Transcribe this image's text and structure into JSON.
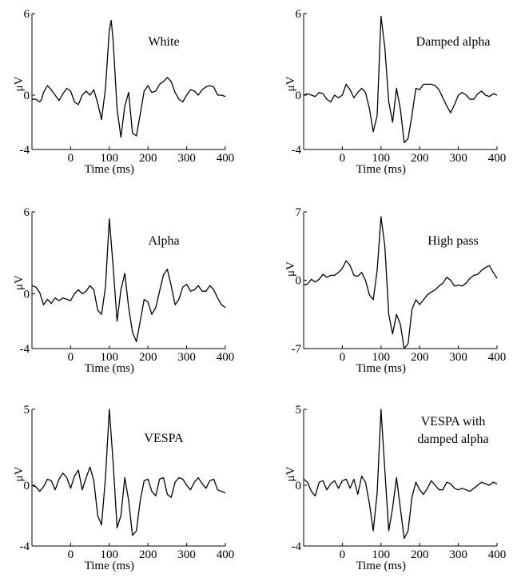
{
  "chart_data": [
    {
      "type": "line",
      "annotation": "White",
      "xlabel": "Time (ms)",
      "ylabel": "μV",
      "xlim": [
        -100,
        400
      ],
      "ylim": [
        -4,
        6
      ],
      "xticks": [
        0,
        100,
        200,
        300,
        400
      ],
      "yticks": [
        -4,
        0,
        6
      ],
      "grid": false,
      "series": [
        {
          "x": [
            -100,
            -90,
            -80,
            -75,
            -70,
            -60,
            -50,
            -40,
            -30,
            -20,
            -10,
            0,
            10,
            20,
            30,
            40,
            50,
            60,
            70,
            80,
            90,
            100,
            105,
            110,
            120,
            130,
            140,
            150,
            160,
            170,
            180,
            190,
            200,
            210,
            220,
            230,
            240,
            250,
            260,
            270,
            280,
            290,
            300,
            310,
            320,
            330,
            340,
            350,
            360,
            370,
            380,
            390,
            400
          ],
          "y": [
            -0.3,
            -0.3,
            -0.5,
            -0.3,
            0.2,
            0.7,
            0.4,
            0.0,
            -0.4,
            0.1,
            0.5,
            0.3,
            -0.5,
            -0.7,
            0.0,
            0.3,
            0.0,
            0.4,
            -0.6,
            -1.8,
            0.5,
            4.8,
            5.5,
            4.0,
            -1.0,
            -3.1,
            -0.8,
            0.2,
            -2.8,
            -3.0,
            -1.4,
            0.3,
            0.7,
            0.2,
            0.3,
            0.8,
            1.0,
            1.3,
            1.0,
            0.2,
            -0.3,
            -0.5,
            0.0,
            0.4,
            0.3,
            0.0,
            0.4,
            0.6,
            0.7,
            0.6,
            0.0,
            0.0,
            -0.1
          ]
        }
      ]
    },
    {
      "type": "line",
      "annotation": "Damped alpha",
      "xlabel": "Time (ms)",
      "ylabel": "μV",
      "xlim": [
        -100,
        400
      ],
      "ylim": [
        -4,
        6
      ],
      "xticks": [
        0,
        100,
        200,
        300,
        400
      ],
      "yticks": [
        -4,
        0,
        6
      ],
      "grid": false,
      "series": [
        {
          "x": [
            -100,
            -90,
            -80,
            -70,
            -60,
            -50,
            -40,
            -30,
            -20,
            -10,
            0,
            10,
            20,
            30,
            40,
            50,
            60,
            70,
            80,
            90,
            100,
            110,
            120,
            130,
            140,
            150,
            160,
            170,
            180,
            190,
            200,
            210,
            220,
            230,
            240,
            250,
            260,
            270,
            280,
            290,
            300,
            310,
            320,
            330,
            340,
            350,
            360,
            370,
            380,
            390,
            400
          ],
          "y": [
            0.0,
            0.1,
            0.0,
            -0.1,
            0.2,
            0.1,
            -0.3,
            -0.5,
            0.0,
            -0.2,
            0.0,
            0.8,
            0.4,
            -0.2,
            0.2,
            0.5,
            0.2,
            -1.0,
            -2.7,
            -1.5,
            5.8,
            3.5,
            -0.5,
            -2.0,
            0.5,
            -1.0,
            -3.5,
            -3.2,
            -1.5,
            0.5,
            0.4,
            0.8,
            0.8,
            0.8,
            0.7,
            0.4,
            -0.2,
            -0.8,
            -1.3,
            -0.7,
            0.0,
            0.2,
            0.0,
            -0.3,
            -0.3,
            0.1,
            0.3,
            0.0,
            -0.1,
            0.1,
            0.0
          ]
        }
      ]
    },
    {
      "type": "line",
      "annotation": "Alpha",
      "xlabel": "Time (ms)",
      "ylabel": "μV",
      "xlim": [
        -100,
        400
      ],
      "ylim": [
        -4,
        6
      ],
      "xticks": [
        0,
        100,
        200,
        300,
        400
      ],
      "yticks": [
        -4,
        0,
        6
      ],
      "grid": false,
      "series": [
        {
          "x": [
            -100,
            -90,
            -80,
            -70,
            -60,
            -50,
            -40,
            -30,
            -20,
            -10,
            0,
            10,
            20,
            30,
            40,
            50,
            60,
            70,
            80,
            90,
            100,
            110,
            120,
            130,
            140,
            150,
            160,
            170,
            180,
            190,
            200,
            210,
            220,
            230,
            240,
            250,
            260,
            270,
            280,
            290,
            300,
            310,
            320,
            330,
            340,
            350,
            360,
            370,
            380,
            390,
            400
          ],
          "y": [
            0.6,
            0.5,
            0.1,
            -0.8,
            -0.4,
            -0.7,
            -0.3,
            -0.5,
            -0.3,
            -0.4,
            -0.5,
            0.0,
            0.3,
            0.0,
            0.2,
            0.6,
            0.3,
            -1.2,
            -1.5,
            0.5,
            5.5,
            2.0,
            -2.0,
            0.3,
            1.5,
            -1.0,
            -2.8,
            -3.5,
            -2.0,
            -0.4,
            -0.6,
            -1.5,
            -1.0,
            0.2,
            1.4,
            1.8,
            0.6,
            -0.8,
            -0.4,
            0.5,
            0.7,
            0.2,
            0.3,
            0.6,
            0.2,
            0.2,
            0.6,
            0.3,
            -0.3,
            -0.8,
            -1.0
          ]
        }
      ]
    },
    {
      "type": "line",
      "annotation": "High pass",
      "xlabel": "Time (ms)",
      "ylabel": "μV",
      "xlim": [
        -100,
        400
      ],
      "ylim": [
        -7,
        7
      ],
      "xticks": [
        0,
        100,
        200,
        300,
        400
      ],
      "yticks": [
        -7,
        0,
        7
      ],
      "grid": false,
      "series": [
        {
          "x": [
            -100,
            -90,
            -80,
            -70,
            -60,
            -50,
            -40,
            -30,
            -20,
            -10,
            0,
            10,
            20,
            30,
            40,
            50,
            60,
            70,
            80,
            90,
            100,
            110,
            120,
            130,
            140,
            150,
            160,
            170,
            180,
            190,
            200,
            210,
            220,
            230,
            240,
            250,
            260,
            270,
            280,
            290,
            300,
            310,
            320,
            330,
            340,
            350,
            360,
            370,
            380,
            390,
            400
          ],
          "y": [
            -0.5,
            -0.4,
            0.1,
            -0.2,
            0.1,
            0.6,
            0.3,
            0.5,
            0.5,
            0.8,
            1.2,
            2.0,
            1.5,
            0.5,
            0.4,
            0.8,
            0.0,
            -1.5,
            -2.0,
            1.0,
            6.5,
            3.5,
            -3.5,
            -5.5,
            -3.5,
            -4.5,
            -7.0,
            -6.5,
            -3.0,
            -2.0,
            -2.5,
            -2.0,
            -1.5,
            -1.2,
            -1.0,
            -0.6,
            -0.3,
            0.3,
            0.0,
            -0.6,
            -0.5,
            -0.6,
            -0.3,
            0.2,
            0.5,
            0.6,
            1.0,
            1.3,
            1.5,
            0.8,
            0.2
          ]
        }
      ]
    },
    {
      "type": "line",
      "annotation": "VESPA",
      "xlabel": "Time (ms)",
      "ylabel": "μV",
      "xlim": [
        -100,
        400
      ],
      "ylim": [
        -4,
        5
      ],
      "xticks": [
        0,
        100,
        200,
        300,
        400
      ],
      "yticks": [
        -4,
        0,
        5
      ],
      "grid": false,
      "series": [
        {
          "x": [
            -100,
            -90,
            -80,
            -70,
            -60,
            -50,
            -40,
            -30,
            -20,
            -10,
            0,
            10,
            20,
            30,
            40,
            50,
            60,
            70,
            80,
            90,
            100,
            110,
            120,
            130,
            140,
            150,
            160,
            170,
            180,
            190,
            200,
            210,
            220,
            230,
            240,
            250,
            260,
            270,
            280,
            290,
            300,
            310,
            320,
            330,
            340,
            350,
            360,
            370,
            380,
            390,
            400
          ],
          "y": [
            0.0,
            -0.1,
            -0.4,
            -0.1,
            0.4,
            0.3,
            -0.3,
            0.4,
            0.8,
            0.5,
            -0.2,
            0.6,
            1.0,
            -0.3,
            0.5,
            1.2,
            0.3,
            -2.0,
            -2.6,
            0.5,
            5.0,
            1.5,
            -2.8,
            -2.0,
            0.5,
            -1.0,
            -3.3,
            -3.0,
            -1.0,
            0.3,
            0.4,
            -0.4,
            -0.7,
            0.4,
            0.5,
            -0.6,
            -0.8,
            0.2,
            0.5,
            0.4,
            0.0,
            -0.3,
            0.2,
            0.5,
            0.1,
            -0.2,
            0.3,
            0.4,
            -0.3,
            -0.4,
            -0.5
          ]
        }
      ]
    },
    {
      "type": "line",
      "annotation_lines": [
        "VESPA with",
        "damped alpha"
      ],
      "xlabel": "Time (ms)",
      "ylabel": "μV",
      "xlim": [
        -100,
        400
      ],
      "ylim": [
        -4,
        5
      ],
      "xticks": [
        0,
        100,
        200,
        300,
        400
      ],
      "yticks": [
        -4,
        0,
        5
      ],
      "grid": false,
      "series": [
        {
          "x": [
            -100,
            -90,
            -80,
            -70,
            -60,
            -50,
            -40,
            -30,
            -20,
            -10,
            0,
            10,
            20,
            30,
            40,
            50,
            60,
            70,
            80,
            90,
            100,
            110,
            120,
            130,
            140,
            150,
            160,
            170,
            180,
            190,
            200,
            210,
            220,
            230,
            240,
            250,
            260,
            270,
            280,
            290,
            300,
            310,
            320,
            330,
            340,
            350,
            360,
            370,
            380,
            390,
            400
          ],
          "y": [
            0.4,
            0.2,
            -0.4,
            -0.7,
            0.2,
            0.3,
            -0.3,
            0.1,
            0.3,
            -0.2,
            0.3,
            0.4,
            -0.2,
            0.4,
            -0.6,
            0.6,
            0.2,
            -1.2,
            -3.0,
            -0.5,
            5.0,
            1.0,
            -3.0,
            -1.5,
            0.5,
            -1.5,
            -3.5,
            -3.0,
            -0.8,
            0.2,
            -0.3,
            -0.6,
            -0.2,
            0.3,
            0.0,
            -0.3,
            -0.3,
            0.2,
            0.1,
            -0.2,
            -0.3,
            -0.2,
            -0.3,
            -0.4,
            -0.2,
            0.0,
            0.2,
            0.1,
            0.0,
            0.2,
            0.1
          ]
        }
      ]
    }
  ]
}
